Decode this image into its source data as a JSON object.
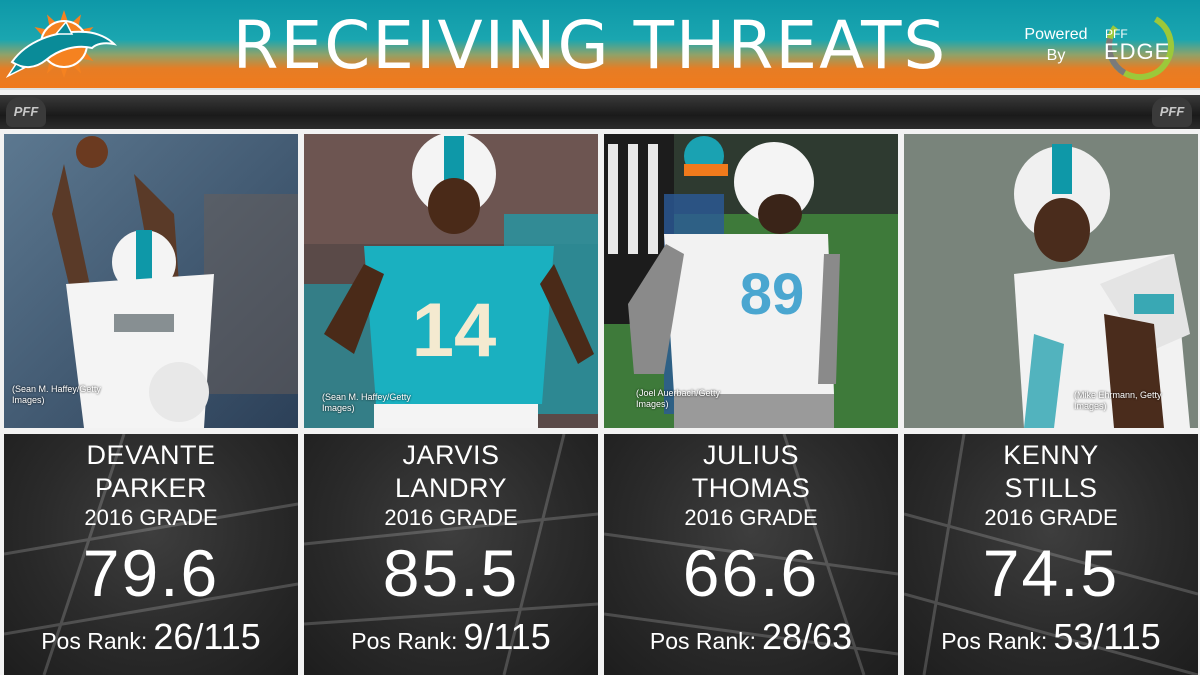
{
  "header": {
    "title": "RECEIVING THREATS",
    "powered_by": "Powered\nBy",
    "powered_line1": "Powered",
    "powered_line2": "By",
    "edge_small": "PFF",
    "edge_word": "EDGE",
    "team_logo_icon": "dolphins-logo",
    "edge_logo_icon": "pff-edge-logo"
  },
  "strip": {
    "mark": "PFF"
  },
  "colors": {
    "aqua": "#0e98a8",
    "orange": "#f07a1c",
    "dark": "#2a2a2a"
  },
  "players": [
    {
      "first": "DEVANTE",
      "last": "PARKER",
      "grade_label": "2016 GRADE",
      "grade": "79.6",
      "rank_label": "Pos Rank:",
      "rank": "26/115",
      "credit_line1": "(Sean M. Haffey/Getty",
      "credit_line2": "Images)"
    },
    {
      "first": "JARVIS",
      "last": "LANDRY",
      "grade_label": "2016 GRADE",
      "grade": "85.5",
      "rank_label": "Pos Rank:",
      "rank": "9/115",
      "credit_line1": "(Sean M. Haffey/Getty",
      "credit_line2": "Images)"
    },
    {
      "first": "JULIUS",
      "last": "THOMAS",
      "grade_label": "2016 GRADE",
      "grade": "66.6",
      "rank_label": "Pos Rank:",
      "rank": "28/63",
      "credit_line1": "(Joel Auerbach/Getty",
      "credit_line2": "Images)"
    },
    {
      "first": "KENNY",
      "last": "STILLS",
      "grade_label": "2016 GRADE",
      "grade": "74.5",
      "rank_label": "Pos Rank:",
      "rank": "53/115",
      "credit_line1": "(Mike Ehrmann, Getty",
      "credit_line2": "Images)"
    }
  ]
}
